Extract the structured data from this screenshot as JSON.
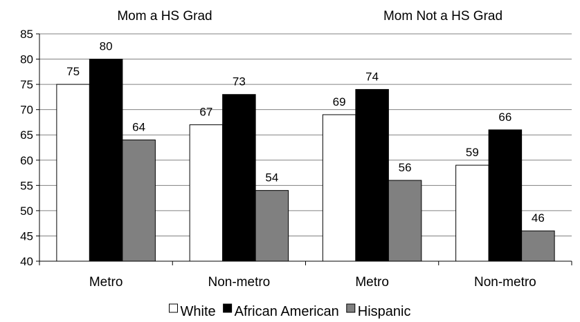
{
  "chart_data": {
    "type": "bar",
    "group_titles": [
      "Mom a HS Grad",
      "Mom Not a HS Grad"
    ],
    "categories": [
      "Metro",
      "Non-metro",
      "Metro",
      "Non-metro"
    ],
    "series": [
      {
        "name": "White",
        "values": [
          75,
          67,
          69,
          59
        ],
        "color": "#ffffff"
      },
      {
        "name": "African American",
        "values": [
          80,
          73,
          74,
          66
        ],
        "color": "#000000"
      },
      {
        "name": "Hispanic",
        "values": [
          64,
          54,
          56,
          46
        ],
        "color": "#808080"
      }
    ],
    "data_labels": [
      [
        "75",
        "67",
        "69",
        "59"
      ],
      [
        "80",
        "73",
        "74",
        "66"
      ],
      [
        "64",
        "54",
        "56",
        "46"
      ]
    ],
    "ylim": [
      40,
      85
    ],
    "yticks": [
      "40",
      "45",
      "50",
      "55",
      "60",
      "65",
      "70",
      "75",
      "80",
      "85"
    ],
    "grid": true,
    "legend_position": "bottom"
  }
}
